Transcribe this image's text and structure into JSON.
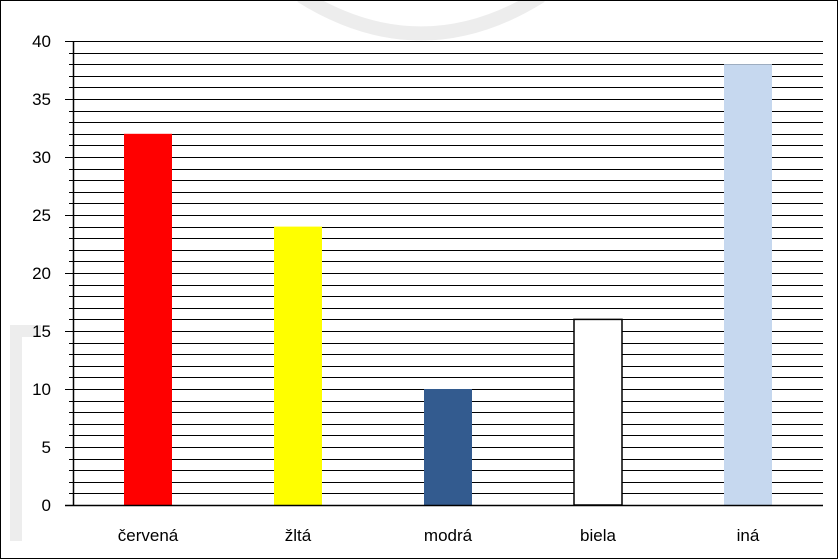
{
  "chart_data": {
    "type": "bar",
    "title": "",
    "xlabel": "",
    "ylabel": "",
    "categories": [
      "červená",
      "žltá",
      "modrá",
      "biela",
      "iná"
    ],
    "values": [
      32,
      24,
      10,
      16,
      38
    ],
    "bar_colors": [
      "#ff0000",
      "#ffff00",
      "#335b8f",
      "#ffffff",
      "#c6d8ef"
    ],
    "ylim": [
      0,
      40
    ],
    "y_tick_values": [
      0,
      5,
      10,
      15,
      20,
      25,
      30,
      35,
      40
    ],
    "y_minor_step": 1,
    "grid": true,
    "grid_color": "#000000",
    "legend": "none"
  }
}
